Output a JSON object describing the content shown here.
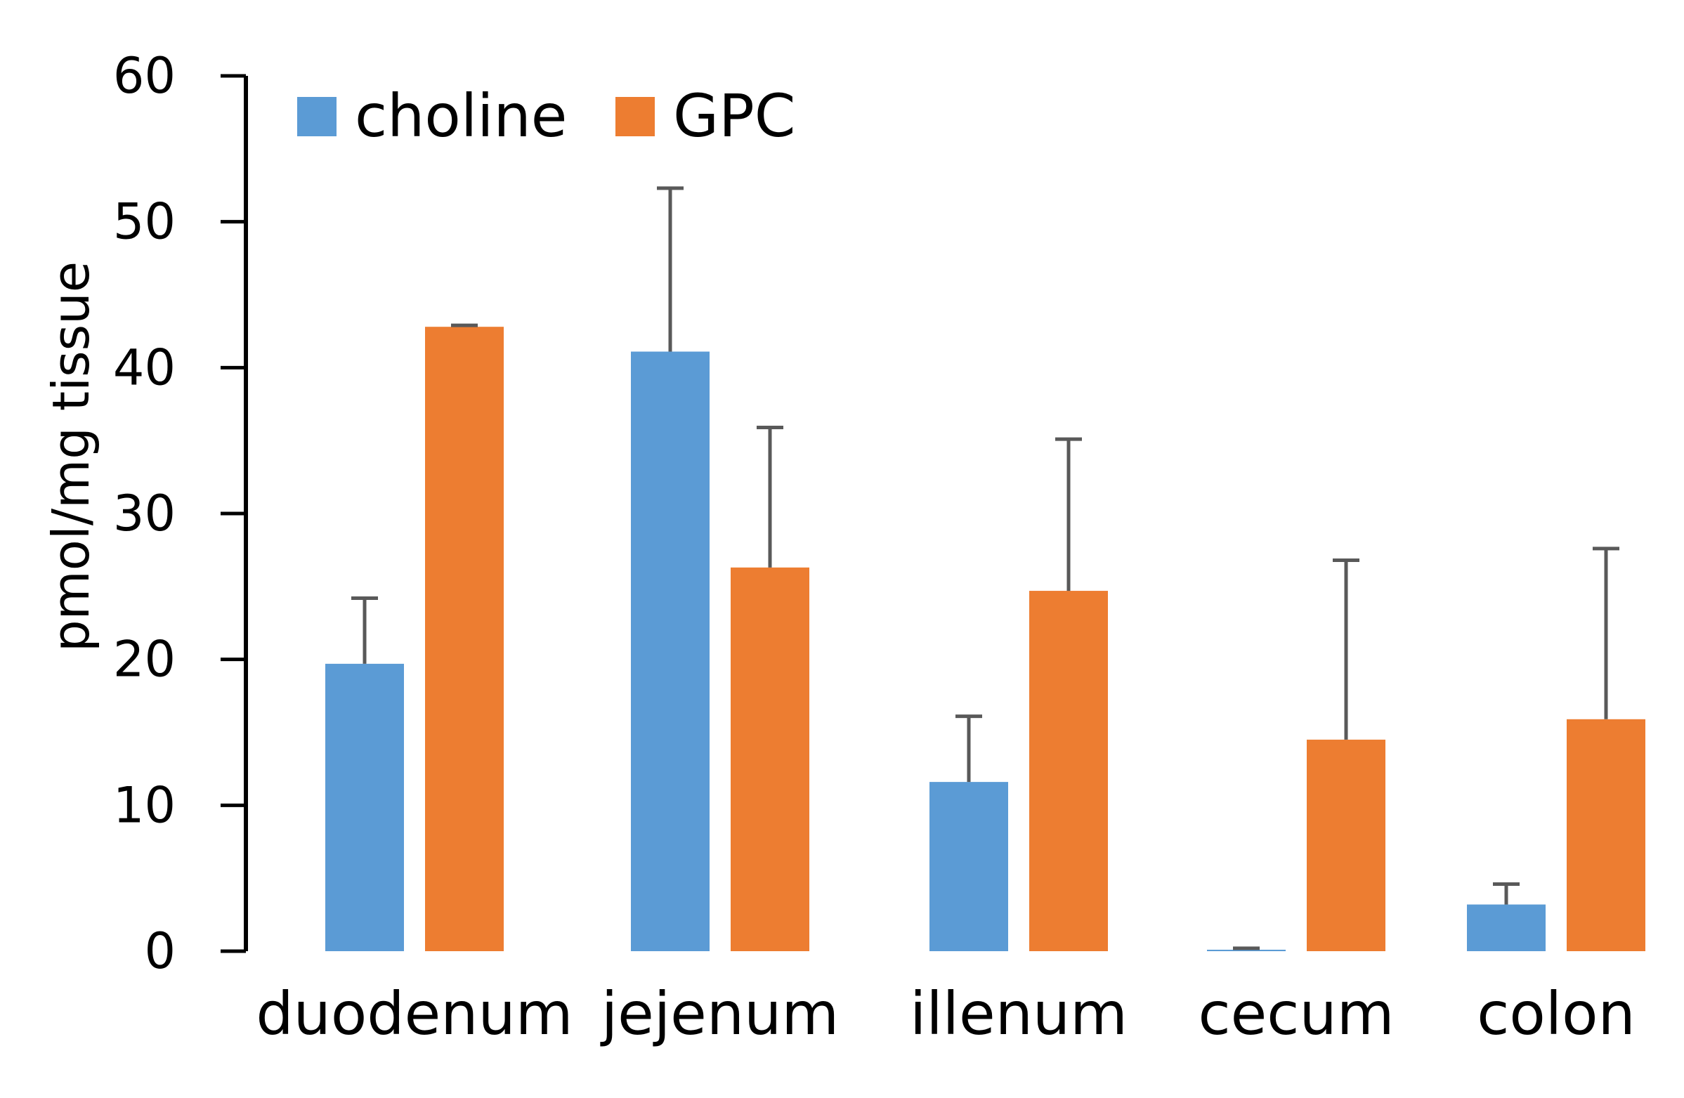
{
  "chart_data": {
    "type": "bar",
    "title": "",
    "xlabel": "",
    "ylabel": "pmol/mg tissue",
    "ylim": [
      0,
      60
    ],
    "yticks": [
      0,
      10,
      20,
      30,
      40,
      50,
      60
    ],
    "grid": false,
    "legend_position": "top-left",
    "categories": [
      "duodenum",
      "jejenum",
      "illenum",
      "cecum",
      "colon"
    ],
    "series": [
      {
        "name": "choline",
        "color": "#5B9BD5",
        "values": [
          19.7,
          41.1,
          11.6,
          0.1,
          3.2
        ],
        "error_upper": [
          4.5,
          11.2,
          4.5,
          0.1,
          1.4
        ]
      },
      {
        "name": "GPC",
        "color": "#ED7D31",
        "values": [
          42.8,
          26.3,
          24.7,
          14.5,
          15.9
        ],
        "error_upper": [
          0.1,
          9.6,
          10.4,
          12.3,
          11.7
        ]
      }
    ]
  }
}
